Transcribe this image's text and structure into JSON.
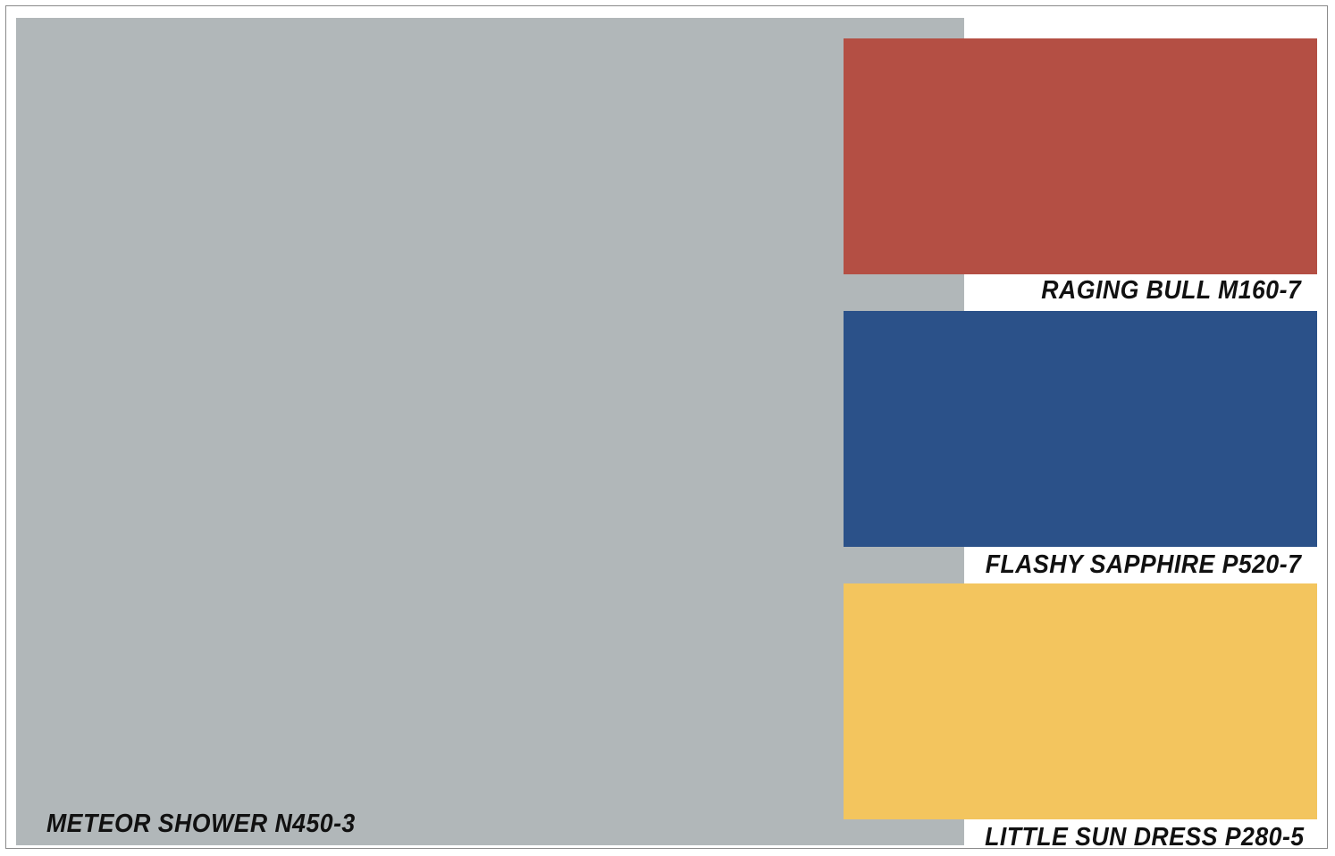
{
  "palette": {
    "main": {
      "name": "METEOR SHOWER N450-3",
      "color": "#b1b7b9"
    },
    "swatches": [
      {
        "name": "RAGING BULL M160-7",
        "color": "#b44f44"
      },
      {
        "name": "FLASHY SAPPHIRE P520-7",
        "color": "#2b5189"
      },
      {
        "name": "LITTLE SUN DRESS P280-5",
        "color": "#f3c55e"
      }
    ]
  }
}
